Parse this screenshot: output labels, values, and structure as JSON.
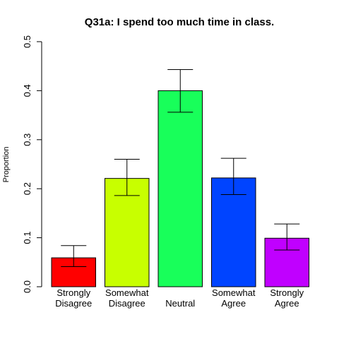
{
  "chart_data": {
    "type": "bar",
    "title": "Q31a: I spend too much time in class.",
    "xlabel": "",
    "ylabel": "Proportion",
    "ylim": [
      0,
      0.5
    ],
    "yticks": [
      0.0,
      0.1,
      0.2,
      0.3,
      0.4,
      0.5
    ],
    "ytick_labels": [
      "0.0",
      "0.1",
      "0.2",
      "0.3",
      "0.4",
      "0.5"
    ],
    "categories": [
      [
        "Strongly",
        "Disagree"
      ],
      [
        "Somewhat",
        "Disagree"
      ],
      [
        "Neutral"
      ],
      [
        "Somewhat",
        "Agree"
      ],
      [
        "Strongly",
        "Agree"
      ]
    ],
    "values": [
      0.059,
      0.221,
      0.4,
      0.222,
      0.099
    ],
    "error_low": [
      0.041,
      0.186,
      0.356,
      0.188,
      0.075
    ],
    "error_high": [
      0.084,
      0.26,
      0.443,
      0.262,
      0.128
    ],
    "colors": [
      "#ff0000",
      "#c8ff00",
      "#18ff5a",
      "#0044ff",
      "#c000ff"
    ],
    "grid": false,
    "legend": "none"
  }
}
